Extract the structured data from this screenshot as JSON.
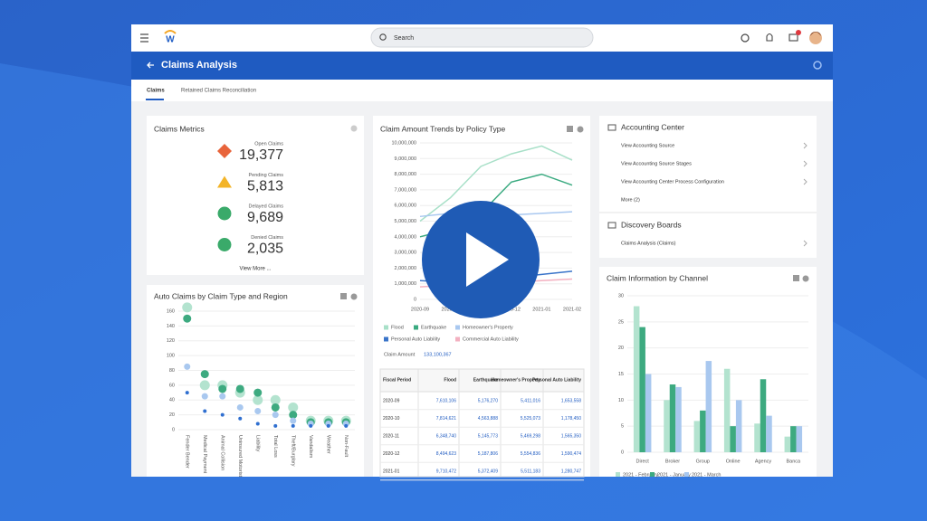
{
  "app": {
    "search": "Search",
    "title": "Claims Analysis",
    "tabs": [
      "Claims",
      "Retained Claims Reconciliation"
    ]
  },
  "metrics": {
    "title": "Claims Metrics",
    "items": [
      {
        "label": "Open Claims",
        "value": "19,377"
      },
      {
        "label": "Pending Claims",
        "value": "5,813"
      },
      {
        "label": "Delayed Claims",
        "value": "9,689"
      },
      {
        "label": "Denied Claims",
        "value": "2,035"
      }
    ],
    "more": "View More ..."
  },
  "chart_data": [
    {
      "type": "scatter",
      "title": "Auto Claims by Claim Type and Region",
      "categories": [
        "Fender Bender",
        "Medical Payment",
        "Animal Collision",
        "Uninsured Motorist",
        "Liability",
        "Total Loss",
        "Theft/Burglary",
        "Vandalism",
        "Weather",
        "Non-Fault"
      ],
      "series": [
        {
          "color": "#b3e3cf",
          "values": [
            165,
            60,
            60,
            50,
            40,
            40,
            30,
            12,
            12,
            12
          ]
        },
        {
          "color": "#3daa80",
          "values": [
            150,
            75,
            55,
            55,
            50,
            30,
            20,
            10,
            10,
            10
          ]
        },
        {
          "color": "#a9c8ef",
          "values": [
            85,
            45,
            45,
            30,
            25,
            20,
            12,
            8,
            8,
            8
          ]
        },
        {
          "color": "#2f6fd0",
          "values": [
            50,
            25,
            20,
            15,
            8,
            5,
            5,
            5,
            5,
            5
          ]
        }
      ],
      "ylim": [
        0,
        160
      ],
      "yticks": [
        0,
        20,
        40,
        60,
        80,
        100,
        120,
        140,
        160
      ],
      "grid": true
    },
    {
      "type": "line",
      "title": "Claim Amount Trends by Policy Type",
      "categories": [
        "2020-09",
        "2020-10",
        "2020-11",
        "2020-12",
        "2021-01",
        "2021-02"
      ],
      "series": [
        {
          "name": "Flood",
          "color": "#a8e0c8",
          "values": [
            5000000,
            6500000,
            8500000,
            9300000,
            9800000,
            8900000
          ]
        },
        {
          "name": "Earthquake",
          "color": "#3aaa80",
          "values": [
            4000000,
            4500000,
            5500000,
            7500000,
            8000000,
            7300000
          ]
        },
        {
          "name": "Homeowner's Property",
          "color": "#a9c8f0",
          "values": [
            5300000,
            5500000,
            5500000,
            5400000,
            5500000,
            5600000
          ]
        },
        {
          "name": "Personal Auto Liability",
          "color": "#3a74c9",
          "values": [
            1200000,
            1100000,
            1300000,
            1400000,
            1600000,
            1800000
          ]
        },
        {
          "name": "Commercial Auto Liability",
          "color": "#f3b0c0",
          "values": [
            800000,
            900000,
            1000000,
            1100000,
            1200000,
            1300000
          ]
        }
      ],
      "ylim": [
        0,
        10000000
      ],
      "yticks": [
        {
          "value": 0,
          "label": "0"
        },
        {
          "value": 1000000,
          "label": "1,000,000"
        },
        {
          "value": 2000000,
          "label": "2,000,000"
        },
        {
          "value": 3000000,
          "label": "3,000,000"
        },
        {
          "value": 4000000,
          "label": "4,000,000"
        },
        {
          "value": 5000000,
          "label": "5,000,000"
        },
        {
          "value": 6000000,
          "label": "6,000,000"
        },
        {
          "value": 7000000,
          "label": "7,000,000"
        },
        {
          "value": 8000000,
          "label": "8,000,000"
        },
        {
          "value": 9000000,
          "label": "9,000,000"
        },
        {
          "value": 10000000,
          "label": "10,000,000"
        }
      ],
      "grid": true
    },
    {
      "type": "bar",
      "title": "Claim Information by Channel",
      "categories": [
        "Direct",
        "Broker",
        "Group",
        "Online",
        "Agency",
        "Banca"
      ],
      "series": [
        {
          "name": "2021 - February",
          "color": "#b3e3cf",
          "values": [
            28,
            10,
            6,
            16,
            5.5,
            3
          ]
        },
        {
          "name": "2021 - January",
          "color": "#3daa80",
          "values": [
            24,
            13,
            8,
            5,
            14,
            5
          ]
        },
        {
          "name": "2021 - March",
          "color": "#a9c8ef",
          "values": [
            15,
            12.5,
            17.5,
            10,
            7,
            5
          ]
        }
      ],
      "ylim": [
        0,
        30
      ],
      "yticks": [
        0,
        5,
        10,
        15,
        20,
        25,
        30
      ],
      "grid": true
    }
  ],
  "claim_summary": {
    "label": "Claim Amount",
    "value": "133,100,367"
  },
  "claim_table": {
    "columns": [
      "Fiscal Period",
      "Flood",
      "Earthquake",
      "Homeowner's Property",
      "Personal Auto Liability"
    ],
    "rows": [
      [
        "2020-09",
        "7,610,106",
        "5,176,270",
        "5,411,016",
        "1,653,558"
      ],
      [
        "2020-10",
        "7,814,621",
        "4,563,888",
        "5,525,073",
        "1,178,450"
      ],
      [
        "2020-11",
        "6,348,740",
        "5,145,773",
        "5,469,298",
        "1,565,350"
      ],
      [
        "2020-12",
        "8,494,623",
        "5,187,806",
        "5,554,836",
        "1,590,474"
      ],
      [
        "2021-01",
        "9,710,472",
        "5,372,409",
        "5,511,183",
        "1,280,747"
      ]
    ]
  },
  "accounting": {
    "title": "Accounting Center",
    "items": [
      "View Accounting Source",
      "View Accounting Source Stages",
      "View Accounting Center Process Configuration",
      "More (2)"
    ],
    "boards_title": "Discovery Boards",
    "boards": [
      "Claims Analysis (Claims)"
    ]
  }
}
